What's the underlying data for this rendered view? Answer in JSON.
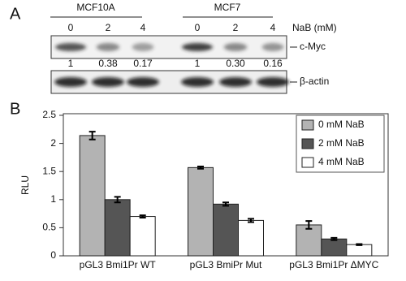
{
  "panel_a": {
    "label": "A",
    "cell_lines": [
      "MCF10A",
      "MCF7"
    ],
    "doses": [
      "0",
      "2",
      "4",
      "0",
      "2",
      "4"
    ],
    "dose_label": "NaB (mM)",
    "bands": [
      "c-Myc",
      "β-actin"
    ],
    "quantification": [
      "1",
      "0.38",
      "0.17",
      "1",
      "0.30",
      "0.16"
    ]
  },
  "chart_data": {
    "type": "bar",
    "panel_label": "B",
    "y_label": "RLU",
    "categories": [
      "pGL3 Bmi1Pr WT",
      "pGL3 BmiPr Mut",
      "pGL3 Bmi1Pr ΔMYC"
    ],
    "series": [
      {
        "name": "0 mM NaB",
        "color": "#b3b3b3",
        "values": [
          2.14,
          1.57,
          0.55
        ],
        "errors": [
          0.07,
          0.02,
          0.07
        ]
      },
      {
        "name": "2 mM NaB",
        "color": "#555555",
        "values": [
          1.0,
          0.92,
          0.3
        ],
        "errors": [
          0.05,
          0.03,
          0.02
        ]
      },
      {
        "name": "4 mM NaB",
        "color": "#ffffff",
        "values": [
          0.7,
          0.63,
          0.2
        ],
        "errors": [
          0.02,
          0.03,
          0.01
        ]
      }
    ],
    "ylim": [
      0,
      2.5
    ],
    "yticks": [
      0,
      0.5,
      1,
      1.5,
      2,
      2.5
    ],
    "legend": "upper right"
  }
}
